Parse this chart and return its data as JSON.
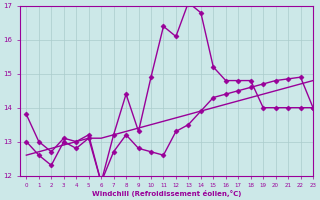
{
  "xlabel": "Windchill (Refroidissement éolien,°C)",
  "x_values": [
    0,
    1,
    2,
    3,
    4,
    5,
    6,
    7,
    8,
    9,
    10,
    11,
    12,
    13,
    14,
    15,
    16,
    17,
    18,
    19,
    20,
    21,
    22,
    23
  ],
  "line1_y": [
    13.8,
    13.0,
    12.7,
    13.1,
    13.0,
    13.2,
    11.8,
    13.2,
    14.4,
    13.3,
    14.9,
    16.4,
    16.1,
    17.1,
    16.8,
    15.2,
    14.8,
    14.8,
    14.8,
    14.0,
    14.0,
    14.0,
    14.0,
    14.0
  ],
  "line2_y": [
    13.0,
    12.6,
    12.3,
    13.0,
    12.8,
    13.1,
    11.8,
    12.7,
    13.2,
    12.8,
    12.7,
    12.6,
    13.3,
    13.5,
    13.9,
    14.3,
    14.4,
    14.5,
    14.6,
    14.7,
    14.8,
    14.85,
    14.9,
    14.0
  ],
  "line3_y": [
    12.6,
    12.7,
    12.8,
    12.9,
    13.0,
    13.1,
    13.1,
    13.2,
    13.3,
    13.4,
    13.5,
    13.6,
    13.7,
    13.8,
    13.9,
    14.0,
    14.1,
    14.2,
    14.3,
    14.4,
    14.5,
    14.6,
    14.7,
    14.8
  ],
  "ylim": [
    12,
    17
  ],
  "xlim": [
    -0.5,
    23
  ],
  "yticks": [
    12,
    13,
    14,
    15,
    16,
    17
  ],
  "xticks": [
    0,
    1,
    2,
    3,
    4,
    5,
    6,
    7,
    8,
    9,
    10,
    11,
    12,
    13,
    14,
    15,
    16,
    17,
    18,
    19,
    20,
    21,
    22,
    23
  ],
  "line_color": "#990099",
  "bg_color": "#cce8e8",
  "grid_color": "#aacccc",
  "tick_label_color": "#990099",
  "axis_label_color": "#990099",
  "marker": "D",
  "marker_size": 2.5,
  "line_width": 1.0
}
